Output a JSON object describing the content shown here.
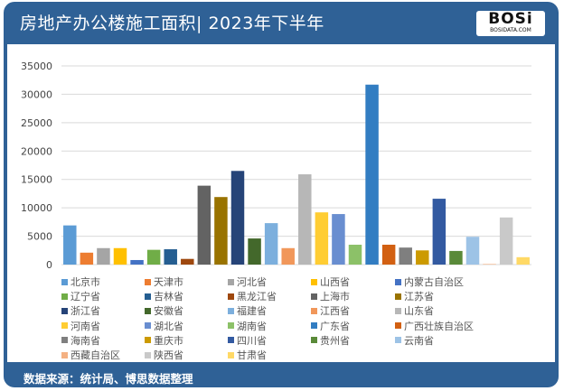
{
  "header": {
    "title": "房地产办公楼施工面积| 2023年下半年",
    "logo_text": "BOSi",
    "logo_sub": "BOSIDATA.COM"
  },
  "footer": {
    "source": "数据来源：统计局、博思数据整理"
  },
  "chart_data": {
    "type": "bar",
    "title": "房地产办公楼施工面积| 2023年下半年",
    "xlabel": "",
    "ylabel": "",
    "ylim": [
      0,
      35000
    ],
    "yticks": [
      0,
      5000,
      10000,
      15000,
      20000,
      25000,
      30000,
      35000
    ],
    "grid": true,
    "legend": "bottom",
    "categories": [
      "北京市",
      "天津市",
      "河北省",
      "山西省",
      "内蒙古自治区",
      "辽宁省",
      "吉林省",
      "黑龙江省",
      "上海市",
      "江苏省",
      "浙江省",
      "安徽省",
      "福建省",
      "江西省",
      "山东省",
      "河南省",
      "湖北省",
      "湖南省",
      "广东省",
      "广西壮族自治区",
      "海南省",
      "重庆市",
      "四川省",
      "贵州省",
      "云南省",
      "西藏自治区",
      "陕西省",
      "甘肃省"
    ],
    "values": [
      6900,
      2100,
      2900,
      2900,
      800,
      2600,
      2700,
      1000,
      13900,
      11900,
      16500,
      4600,
      7300,
      2900,
      15900,
      9200,
      8900,
      3500,
      31700,
      3500,
      3000,
      2500,
      11600,
      2400,
      4900,
      100,
      8300,
      1300
    ],
    "colors": [
      "#5b9bd5",
      "#ed7d31",
      "#a5a5a5",
      "#ffc000",
      "#4472c4",
      "#70ad47",
      "#255e91",
      "#9e480e",
      "#636363",
      "#997300",
      "#264478",
      "#43682b",
      "#7cafdd",
      "#f1975a",
      "#b7b7b7",
      "#ffcd33",
      "#698ed0",
      "#8cc168",
      "#327dc2",
      "#d26012",
      "#7f7f7f",
      "#cc9a00",
      "#335aa1",
      "#5a8a39",
      "#9dc3e6",
      "#f4b183",
      "#c9c9c9",
      "#ffd966"
    ]
  }
}
